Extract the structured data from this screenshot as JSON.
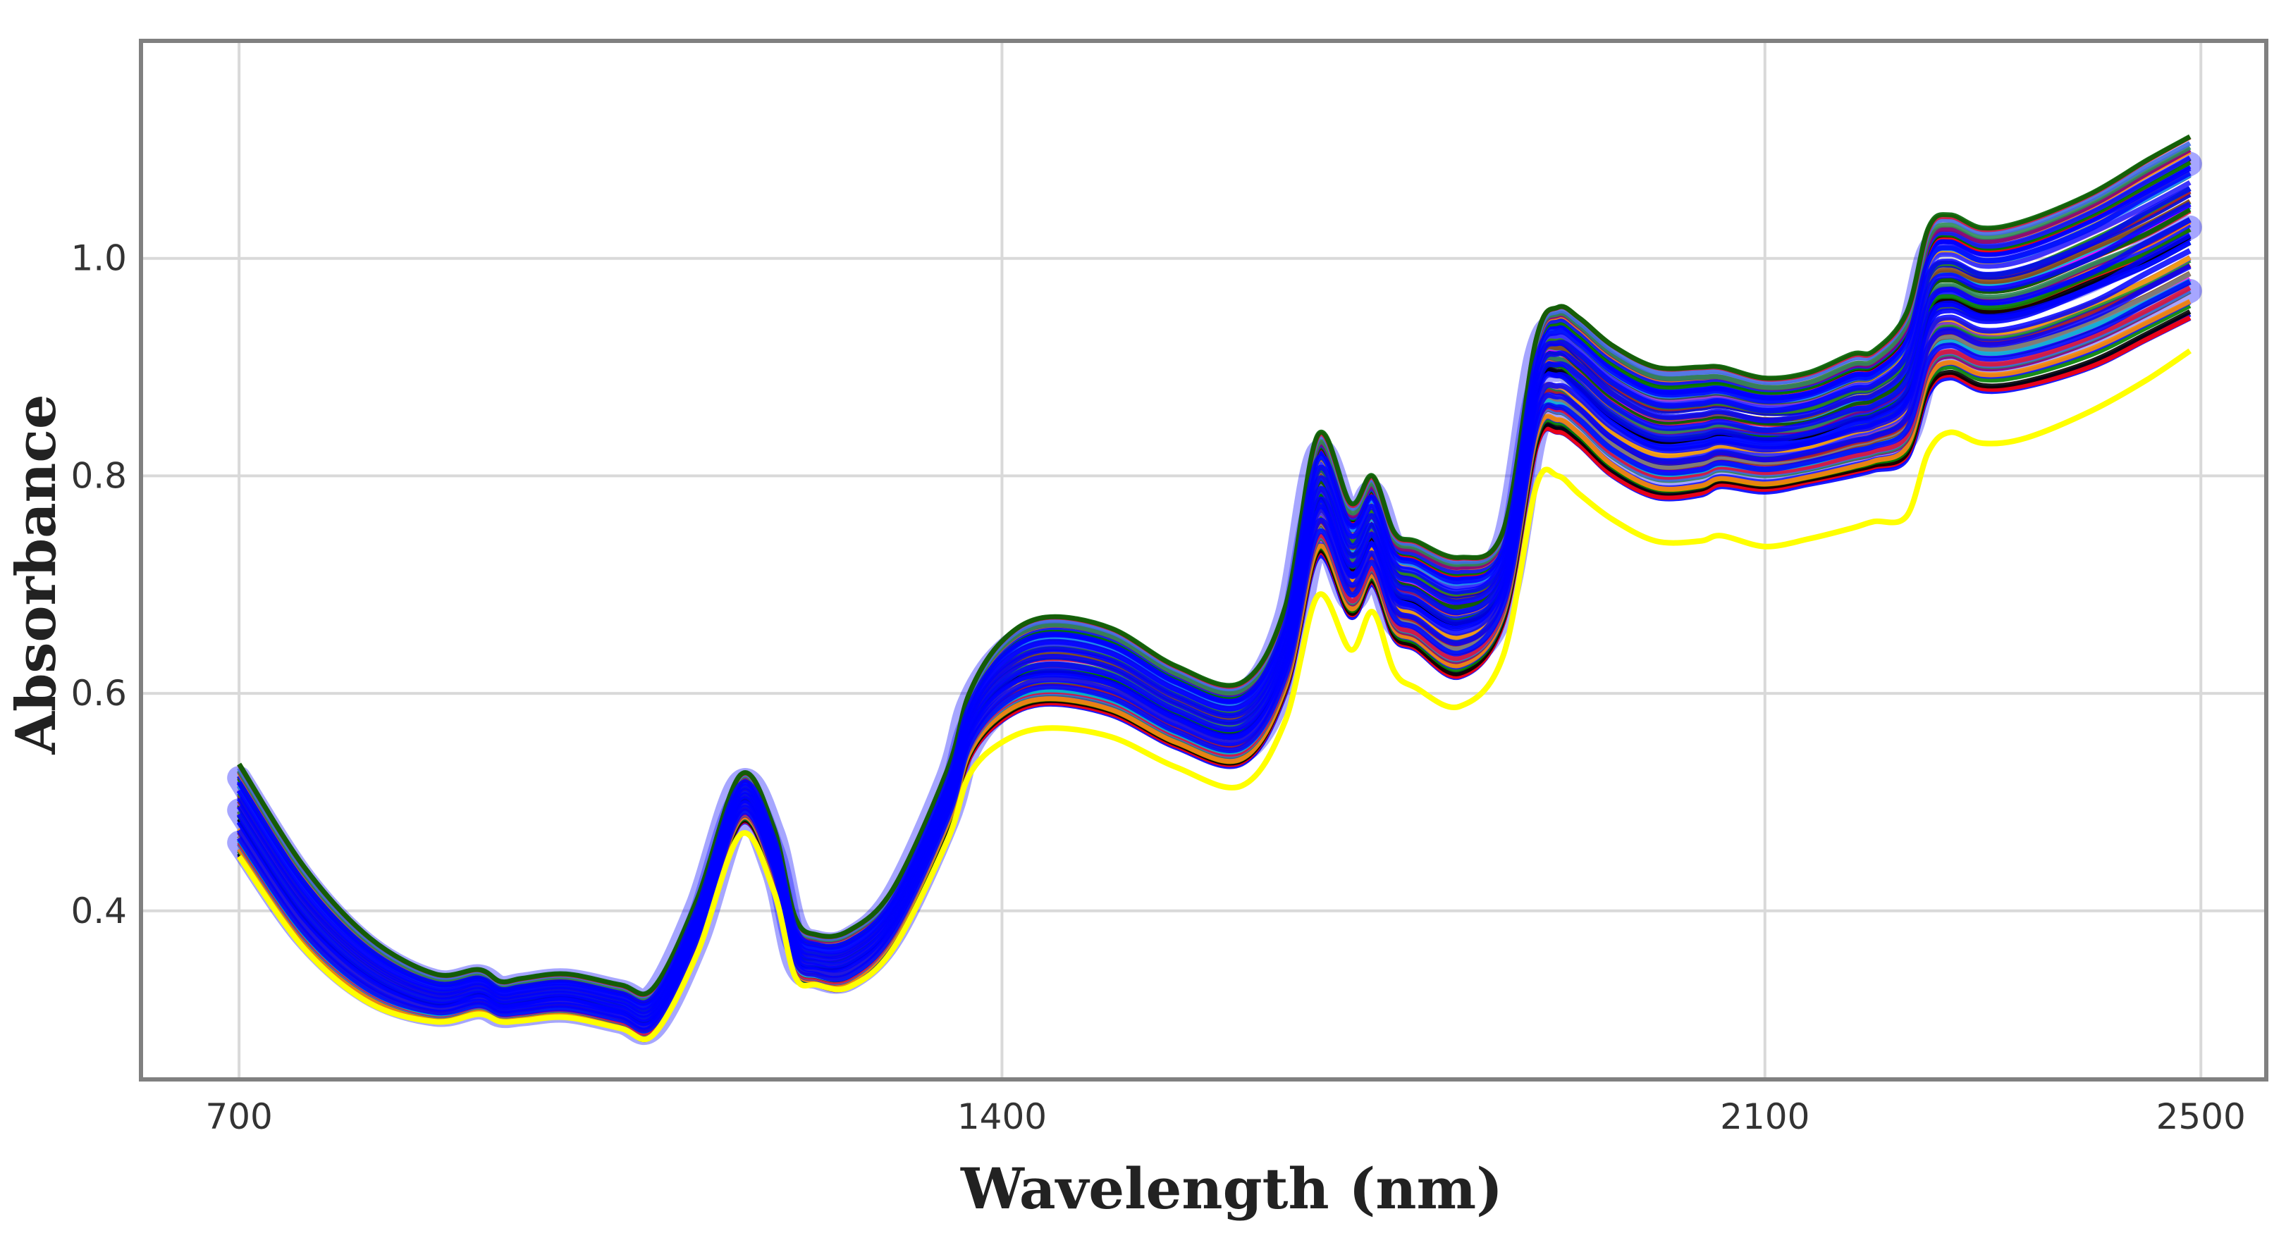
{
  "chart_data": {
    "type": "line",
    "title": "",
    "xlabel": "Wavelength (nm)",
    "ylabel": "Absorbance",
    "xlim": [
      610,
      2560
    ],
    "ylim": [
      0.245,
      1.2
    ],
    "x_ticks": [
      700,
      1400,
      2100,
      2500
    ],
    "x_tick_labels": [
      "700",
      "1400",
      "2100",
      "2500"
    ],
    "y_ticks": [
      0.4,
      0.6,
      0.8,
      1.0
    ],
    "y_tick_labels": [
      "0.4",
      "0.6",
      "0.8",
      "1.0"
    ],
    "grid": true,
    "legend": "none",
    "n_series": 60,
    "x": [
      700,
      760,
      820,
      880,
      920,
      940,
      960,
      1000,
      1050,
      1080,
      1120,
      1160,
      1190,
      1210,
      1230,
      1260,
      1300,
      1350,
      1370,
      1400,
      1440,
      1500,
      1560,
      1620,
      1660,
      1690,
      1720,
      1740,
      1760,
      1780,
      1820,
      1860,
      1890,
      1910,
      1930,
      1960,
      2000,
      2040,
      2060,
      2100,
      2140,
      2180,
      2200,
      2230,
      2250,
      2270,
      2300,
      2340,
      2400,
      2450,
      2490
    ],
    "series": [
      {
        "name": "",
        "role": "upper",
        "values": [
          0.535,
          0.44,
          0.375,
          0.342,
          0.346,
          0.335,
          0.338,
          0.342,
          0.332,
          0.329,
          0.41,
          0.525,
          0.478,
          0.395,
          0.378,
          0.382,
          0.42,
          0.53,
          0.6,
          0.648,
          0.67,
          0.66,
          0.625,
          0.61,
          0.68,
          0.838,
          0.775,
          0.8,
          0.748,
          0.74,
          0.725,
          0.75,
          0.925,
          0.955,
          0.945,
          0.92,
          0.9,
          0.9,
          0.9,
          0.89,
          0.895,
          0.912,
          0.915,
          0.95,
          1.028,
          1.04,
          1.028,
          1.035,
          1.06,
          1.09,
          1.112
        ]
      },
      {
        "name": "",
        "role": "mean",
        "values": [
          0.49,
          0.4,
          0.345,
          0.318,
          0.328,
          0.318,
          0.32,
          0.325,
          0.312,
          0.306,
          0.39,
          0.505,
          0.455,
          0.365,
          0.352,
          0.356,
          0.395,
          0.505,
          0.572,
          0.612,
          0.625,
          0.617,
          0.585,
          0.57,
          0.64,
          0.785,
          0.72,
          0.748,
          0.7,
          0.69,
          0.672,
          0.71,
          0.885,
          0.905,
          0.89,
          0.862,
          0.84,
          0.842,
          0.845,
          0.84,
          0.842,
          0.857,
          0.862,
          0.885,
          0.958,
          0.97,
          0.96,
          0.965,
          0.99,
          1.01,
          1.032
        ]
      },
      {
        "name": "",
        "role": "lower",
        "values": [
          0.45,
          0.365,
          0.315,
          0.298,
          0.305,
          0.298,
          0.299,
          0.302,
          0.292,
          0.286,
          0.365,
          0.48,
          0.43,
          0.345,
          0.332,
          0.33,
          0.37,
          0.475,
          0.54,
          0.575,
          0.59,
          0.58,
          0.55,
          0.535,
          0.6,
          0.725,
          0.67,
          0.7,
          0.65,
          0.64,
          0.615,
          0.665,
          0.825,
          0.84,
          0.828,
          0.8,
          0.78,
          0.782,
          0.79,
          0.785,
          0.792,
          0.8,
          0.805,
          0.815,
          0.875,
          0.89,
          0.878,
          0.882,
          0.9,
          0.925,
          0.945
        ]
      },
      {
        "name": "",
        "role": "outlier",
        "values": [
          0.45,
          0.365,
          0.315,
          0.298,
          0.305,
          0.298,
          0.299,
          0.302,
          0.292,
          0.286,
          0.36,
          0.47,
          0.42,
          0.34,
          0.332,
          0.33,
          0.365,
          0.465,
          0.525,
          0.555,
          0.568,
          0.56,
          0.532,
          0.515,
          0.575,
          0.69,
          0.64,
          0.675,
          0.62,
          0.605,
          0.588,
          0.635,
          0.79,
          0.8,
          0.783,
          0.76,
          0.74,
          0.74,
          0.745,
          0.735,
          0.742,
          0.752,
          0.758,
          0.763,
          0.822,
          0.84,
          0.83,
          0.835,
          0.86,
          0.888,
          0.915
        ]
      }
    ]
  },
  "colors": {
    "palette": [
      "#0000ff",
      "#0000ff",
      "#ff0000",
      "#000000",
      "#008000",
      "#1a1aff",
      "#ff8c00",
      "#800080",
      "#2e8b57",
      "#4169e1",
      "#dc143c",
      "#006400",
      "#ff00ff",
      "#00bcd4",
      "#8b4513",
      "#808080",
      "#0000cd",
      "#b22222",
      "#228b22",
      "#9932cc",
      "#3333ff",
      "#ffa500",
      "#2f4f4f",
      "#1e90ff"
    ],
    "outlier": "#ffff00",
    "band": "#0000ff",
    "frame": "#808080",
    "grid": "#d9d9d9",
    "text": "#222222"
  }
}
